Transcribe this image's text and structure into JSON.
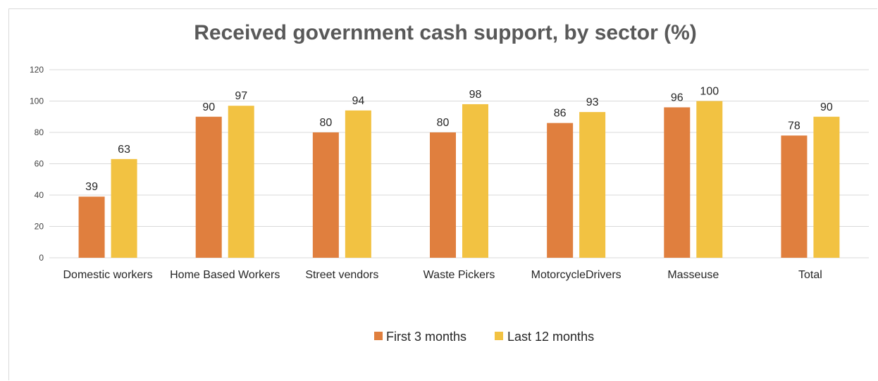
{
  "chart_data": {
    "type": "bar",
    "title": "Received government cash support, by sector (%)",
    "categories": [
      "Domestic workers",
      "Home Based Workers",
      "Street vendors",
      "Waste Pickers",
      "MotorcycleDrivers",
      "Masseuse",
      "Total"
    ],
    "series": [
      {
        "name": "First 3 months",
        "color": "#E07F3E",
        "values": [
          39,
          90,
          80,
          80,
          86,
          96,
          78
        ]
      },
      {
        "name": "Last 12 months",
        "color": "#F2C242",
        "values": [
          63,
          97,
          94,
          98,
          93,
          100,
          90
        ]
      }
    ],
    "ylim": [
      0,
      120
    ],
    "yticks": [
      0,
      20,
      40,
      60,
      80,
      100,
      120
    ],
    "grid": true,
    "legend_position": "bottom",
    "data_labels": true
  }
}
